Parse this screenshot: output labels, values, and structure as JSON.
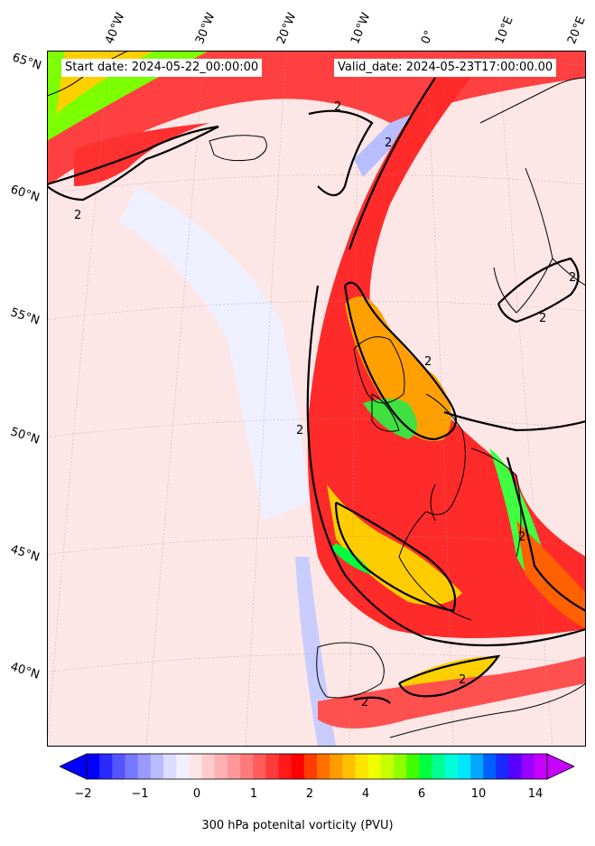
{
  "header": {
    "start_date": "Start date: 2024-05-22_00:00:00",
    "valid_date": "Valid_date: 2024-05-23T17:00:00.00"
  },
  "longitude_labels": [
    "40°W",
    "30°W",
    "20°W",
    "10°W",
    "0°",
    "10°E",
    "20°E"
  ],
  "latitude_labels": [
    "65°N",
    "60°N",
    "55°N",
    "50°N",
    "45°N",
    "40°N"
  ],
  "contour_label": "2",
  "colorbar": {
    "title": "300 hPa potenital vorticity (PVU)",
    "ticks": [
      "−2",
      "−1",
      "0",
      "1",
      "2",
      "4",
      "6",
      "10",
      "14"
    ],
    "colors": [
      "#0000ff",
      "#2a2aff",
      "#5555ff",
      "#7777ff",
      "#9999ff",
      "#bbbbff",
      "#dcdcff",
      "#f0f0ff",
      "#ffe6e6",
      "#ffcccc",
      "#ffb0b0",
      "#ff9898",
      "#ff7a7a",
      "#ff5c5c",
      "#ff3a3a",
      "#ff1a1a",
      "#ff0000",
      "#ff3c00",
      "#ff7000",
      "#ff9c00",
      "#ffc000",
      "#ffe600",
      "#f0ff00",
      "#c8ff00",
      "#90ff00",
      "#40ff00",
      "#00ff40",
      "#00ff90",
      "#00ffd8",
      "#00e6ff",
      "#00a8ff",
      "#0060ff",
      "#1a2aff",
      "#5a00ff",
      "#9a00ff",
      "#c800ff"
    ]
  }
}
